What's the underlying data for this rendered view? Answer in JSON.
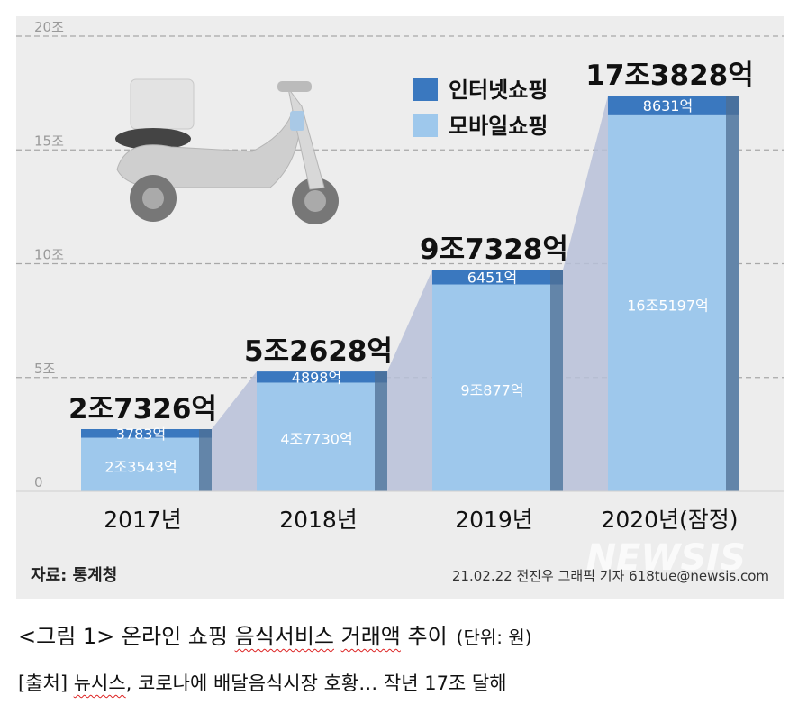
{
  "chart_data": {
    "type": "bar",
    "stacked": true,
    "categories": [
      "2017년",
      "2018년",
      "2019년",
      "2020년(잠정)"
    ],
    "series": [
      {
        "name": "모바일쇼핑",
        "values": [
          23543,
          47730,
          90877,
          165197
        ],
        "labels": [
          "2조3543억",
          "4조7730억",
          "9조877억",
          "16조5197억"
        ],
        "color": "#9ec8ec"
      },
      {
        "name": "인터넷쇼핑",
        "values": [
          3783,
          4898,
          6451,
          8631
        ],
        "labels": [
          "3783억",
          "4898억",
          "6451억",
          "8631억"
        ],
        "color": "#3a78bf"
      }
    ],
    "totals": [
      27326,
      52628,
      97328,
      173828
    ],
    "total_labels": [
      "2조7326억",
      "5조2628억",
      "9조7328억",
      "17조3828억"
    ],
    "yticks": [
      "0",
      "5조",
      "10조",
      "15조",
      "20조"
    ],
    "ylim": [
      0,
      200000
    ],
    "grid": true,
    "legend": "top-right"
  },
  "figure": {
    "source": "자료: 통계청",
    "credit": "21.02.22 전진우 그래픽 기자 618tue@newsis.com",
    "watermark": "NEWSIS"
  },
  "caption": {
    "prefix": "<그림 1> 온라인 쇼핑 ",
    "term1": "음식서비스",
    "space": " ",
    "term2": "거래액",
    "suffix": " 추이",
    "unit": "(단위: 원)"
  },
  "source_line": {
    "prefix": "[출처] ",
    "term": "뉴시스",
    "rest": ", 코로나에 배달음식시장 호황… 작년 17조 달해"
  },
  "colors": {
    "background": "#ededed",
    "mobile": "#9ec8ec",
    "internet": "#3a78bf",
    "bar_shadow": "#4f6f93",
    "band": "#b7bfd8"
  }
}
